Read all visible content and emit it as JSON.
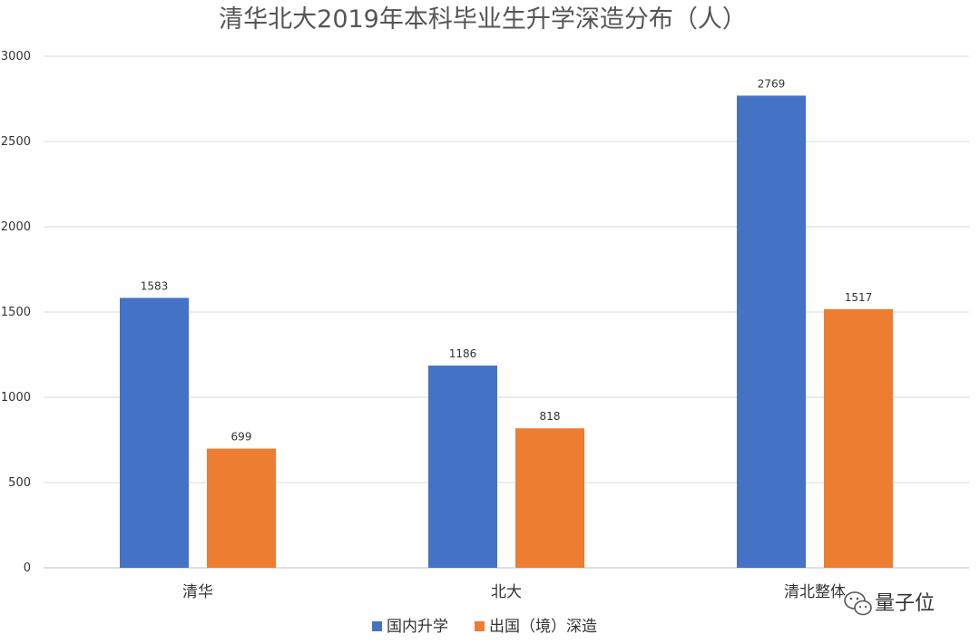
{
  "watermark": {
    "text": "量子位",
    "icon": "wechat-icon"
  },
  "chart_data": {
    "type": "bar",
    "title": "清华北大2019年本科毕业生升学深造分布（人）",
    "xlabel": "",
    "ylabel": "",
    "categories": [
      "清华",
      "北大",
      "清北整体"
    ],
    "series": [
      {
        "name": "国内升学",
        "values": [
          1583,
          1186,
          2769
        ],
        "color": "#4472C4"
      },
      {
        "name": "出国（境）深造",
        "values": [
          699,
          818,
          1517
        ],
        "color": "#ED7D31"
      }
    ],
    "ylim": [
      0,
      3000
    ],
    "yticks": [
      0,
      500,
      1000,
      1500,
      2000,
      2500,
      3000
    ],
    "grid": true,
    "legend_position": "bottom",
    "data_labels": true
  }
}
